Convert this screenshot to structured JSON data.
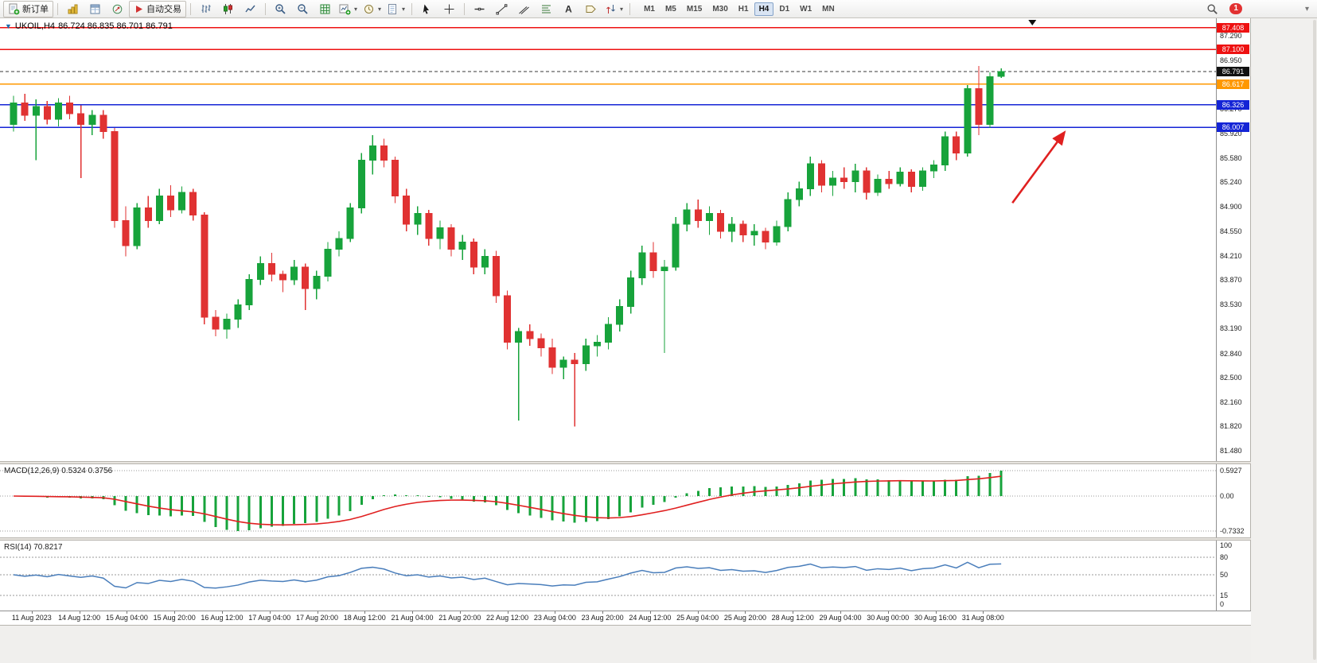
{
  "toolbar": {
    "new_order": "新订单",
    "auto_trading": "自动交易",
    "timeframes": [
      "M1",
      "M5",
      "M15",
      "M30",
      "H1",
      "H4",
      "D1",
      "W1",
      "MN"
    ],
    "active_timeframe": "H4",
    "badge_count": "1"
  },
  "chart": {
    "symbol_title": "UKOIL,H4",
    "ohlc": "86.724 86.835 86.701 86.791"
  },
  "panels": {
    "macd": {
      "label": "MACD(12,26,9) 0.5324 0.3756"
    },
    "rsi": {
      "label": "RSI(14) 70.8217"
    }
  },
  "icons": {
    "new-order-icon": "document-plus",
    "market-watch-icon": "gold-bars",
    "data-window-icon": "window-table",
    "navigator-icon": "compass-circle",
    "auto-trading-icon": "red-play",
    "bar-chart-icon": "ohlc-bars",
    "candlestick-chart-icon": "two-candles",
    "line-chart-icon": "polyline",
    "zoom-in-icon": "magnifier-plus",
    "zoom-out-icon": "magnifier-minus",
    "grid-icon": "green-grid",
    "new-chart-icon": "chart-plus",
    "profiles-icon": "clock",
    "templates-icon": "page",
    "cursor-icon": "arrow-pointer",
    "crosshair-icon": "plus-cross",
    "horizontal-line-icon": "dash",
    "trendline-icon": "diagonal",
    "channel-icon": "parallel-lines",
    "fibonacci-icon": "stacked-lines",
    "text-icon": "letter-A",
    "label-icon": "tag",
    "arrows-icon": "up-down-arrows",
    "search-icon": "magnifier",
    "chevron-down-icon": "small-chevron",
    "mt-logo-icon": "blue-triangle"
  },
  "chart_data": [
    {
      "type": "candlestick",
      "symbol": "UKOIL",
      "timeframe": "H4",
      "current_ohlc": {
        "open": 86.724,
        "high": 86.835,
        "low": 86.701,
        "close": 86.791
      },
      "y_range": [
        81.4,
        87.47
      ],
      "shift_frac": 0.828,
      "up_color": "#17a33b",
      "down_color": "#e03232",
      "y_ticks": [
        "87.290",
        "86.950",
        "86.610",
        "86.270",
        "85.920",
        "85.580",
        "85.240",
        "84.900",
        "84.550",
        "84.210",
        "83.870",
        "83.530",
        "83.190",
        "82.840",
        "82.500",
        "82.160",
        "81.820",
        "81.480"
      ],
      "x_labels": [
        "11 Aug 2023",
        "14 Aug 12:00",
        "15 Aug 04:00",
        "15 Aug 20:00",
        "16 Aug 12:00",
        "17 Aug 04:00",
        "17 Aug 20:00",
        "18 Aug 12:00",
        "21 Aug 04:00",
        "21 Aug 20:00",
        "22 Aug 12:00",
        "23 Aug 04:00",
        "23 Aug 20:00",
        "24 Aug 12:00",
        "25 Aug 04:00",
        "25 Aug 20:00",
        "28 Aug 12:00",
        "29 Aug 04:00",
        "30 Aug 00:00",
        "30 Aug 16:00",
        "31 Aug 08:00"
      ],
      "hlines": [
        {
          "price": 87.408,
          "label": "87.408",
          "color": "#ee1111",
          "width": 1.4,
          "style": "solid",
          "badge_bg": "#ee1111"
        },
        {
          "price": 87.1,
          "label": "87.100",
          "color": "#ee1111",
          "width": 1.4,
          "style": "solid",
          "badge_bg": "#ee1111"
        },
        {
          "price": 86.791,
          "label": "86.791",
          "color": "#3a3a3a",
          "width": 1.0,
          "style": "dash",
          "badge_bg": "#111111"
        },
        {
          "price": 86.617,
          "label": "86.617",
          "color": "#ff9800",
          "width": 1.4,
          "style": "solid",
          "badge_bg": "#ff9800"
        },
        {
          "price": 86.326,
          "label": "86.326",
          "color": "#1424d6",
          "width": 1.4,
          "style": "solid",
          "badge_bg": "#1424d6"
        },
        {
          "price": 86.007,
          "label": "86.007",
          "color": "#1424d6",
          "width": 1.4,
          "style": "solid",
          "badge_bg": "#1424d6"
        }
      ],
      "annotations": {
        "arrow": {
          "x1_frac": 0.8326,
          "price1": 84.95,
          "x2_frac": 0.875,
          "price2": 85.93,
          "color": "#e02020",
          "width": 2.6
        },
        "scroll_marker_frac": 0.849
      },
      "candles": [
        [
          86.05,
          86.45,
          85.95,
          86.35
        ],
        [
          86.35,
          86.48,
          86.1,
          86.18
        ],
        [
          86.18,
          86.4,
          85.55,
          86.3
        ],
        [
          86.3,
          86.38,
          86.05,
          86.12
        ],
        [
          86.12,
          86.42,
          86.02,
          86.35
        ],
        [
          86.35,
          86.45,
          86.12,
          86.2
        ],
        [
          86.2,
          86.32,
          85.3,
          86.05
        ],
        [
          86.05,
          86.25,
          85.9,
          86.18
        ],
        [
          86.18,
          86.25,
          85.85,
          85.95
        ],
        [
          85.95,
          86.0,
          84.6,
          84.7
        ],
        [
          84.7,
          84.9,
          84.2,
          84.35
        ],
        [
          84.35,
          84.95,
          84.3,
          84.88
        ],
        [
          84.88,
          85.05,
          84.6,
          84.7
        ],
        [
          84.7,
          85.15,
          84.65,
          85.05
        ],
        [
          85.05,
          85.2,
          84.75,
          84.85
        ],
        [
          84.85,
          85.18,
          84.8,
          85.1
        ],
        [
          85.1,
          85.15,
          84.7,
          84.78
        ],
        [
          84.78,
          84.82,
          83.25,
          83.35
        ],
        [
          83.35,
          83.45,
          83.08,
          83.18
        ],
        [
          83.18,
          83.4,
          83.05,
          83.32
        ],
        [
          83.32,
          83.6,
          83.2,
          83.52
        ],
        [
          83.52,
          83.95,
          83.45,
          83.88
        ],
        [
          83.88,
          84.2,
          83.8,
          84.1
        ],
        [
          84.1,
          84.25,
          83.85,
          83.95
        ],
        [
          83.95,
          84.0,
          83.7,
          83.87
        ],
        [
          83.87,
          84.15,
          83.8,
          84.05
        ],
        [
          84.05,
          84.1,
          83.45,
          83.75
        ],
        [
          83.75,
          84.0,
          83.6,
          83.92
        ],
        [
          83.92,
          84.4,
          83.85,
          84.3
        ],
        [
          84.3,
          84.55,
          84.2,
          84.45
        ],
        [
          84.45,
          84.95,
          84.4,
          84.88
        ],
        [
          84.88,
          85.65,
          84.8,
          85.55
        ],
        [
          85.55,
          85.9,
          85.35,
          85.75
        ],
        [
          85.75,
          85.85,
          85.45,
          85.55
        ],
        [
          85.55,
          85.6,
          84.95,
          85.05
        ],
        [
          85.05,
          85.15,
          84.55,
          84.65
        ],
        [
          84.65,
          84.9,
          84.5,
          84.8
        ],
        [
          84.8,
          84.85,
          84.35,
          84.45
        ],
        [
          84.45,
          84.7,
          84.3,
          84.6
        ],
        [
          84.6,
          84.65,
          84.2,
          84.3
        ],
        [
          84.3,
          84.5,
          84.15,
          84.4
        ],
        [
          84.4,
          84.45,
          83.95,
          84.05
        ],
        [
          84.05,
          84.3,
          83.95,
          84.2
        ],
        [
          84.2,
          84.28,
          83.55,
          83.65
        ],
        [
          83.65,
          83.72,
          82.9,
          83.0
        ],
        [
          83.0,
          83.2,
          81.9,
          83.15
        ],
        [
          83.15,
          83.25,
          82.95,
          83.05
        ],
        [
          83.05,
          83.12,
          82.8,
          82.92
        ],
        [
          82.92,
          83.05,
          82.55,
          82.65
        ],
        [
          82.65,
          82.8,
          82.48,
          82.75
        ],
        [
          82.75,
          82.85,
          81.82,
          82.7
        ],
        [
          82.7,
          83.05,
          82.6,
          82.95
        ],
        [
          82.95,
          83.1,
          82.8,
          83.0
        ],
        [
          83.0,
          83.35,
          82.9,
          83.25
        ],
        [
          83.25,
          83.6,
          83.15,
          83.5
        ],
        [
          83.5,
          84.0,
          83.4,
          83.9
        ],
        [
          83.9,
          84.35,
          83.8,
          84.25
        ],
        [
          84.25,
          84.4,
          83.9,
          84.0
        ],
        [
          84.0,
          84.15,
          82.85,
          84.05
        ],
        [
          84.05,
          84.75,
          84.0,
          84.65
        ],
        [
          84.65,
          84.95,
          84.55,
          84.85
        ],
        [
          84.85,
          85.0,
          84.6,
          84.7
        ],
        [
          84.7,
          84.9,
          84.5,
          84.8
        ],
        [
          84.8,
          84.85,
          84.45,
          84.55
        ],
        [
          84.55,
          84.75,
          84.4,
          84.65
        ],
        [
          84.65,
          84.7,
          84.4,
          84.5
        ],
        [
          84.5,
          84.65,
          84.35,
          84.55
        ],
        [
          84.55,
          84.6,
          84.3,
          84.4
        ],
        [
          84.4,
          84.7,
          84.35,
          84.62
        ],
        [
          84.62,
          85.1,
          84.55,
          85.0
        ],
        [
          85.0,
          85.25,
          84.9,
          85.15
        ],
        [
          85.15,
          85.6,
          85.05,
          85.5
        ],
        [
          85.5,
          85.55,
          85.1,
          85.2
        ],
        [
          85.2,
          85.4,
          85.05,
          85.3
        ],
        [
          85.3,
          85.45,
          85.15,
          85.25
        ],
        [
          85.25,
          85.5,
          85.1,
          85.4
        ],
        [
          85.4,
          85.45,
          85.0,
          85.1
        ],
        [
          85.1,
          85.35,
          85.05,
          85.28
        ],
        [
          85.28,
          85.4,
          85.15,
          85.22
        ],
        [
          85.22,
          85.45,
          85.18,
          85.38
        ],
        [
          85.38,
          85.42,
          85.1,
          85.18
        ],
        [
          85.18,
          85.45,
          85.12,
          85.4
        ],
        [
          85.4,
          85.55,
          85.3,
          85.48
        ],
        [
          85.48,
          85.95,
          85.4,
          85.88
        ],
        [
          85.88,
          85.95,
          85.55,
          85.65
        ],
        [
          85.65,
          86.6,
          85.6,
          86.55
        ],
        [
          86.55,
          86.87,
          85.9,
          86.05
        ],
        [
          86.05,
          86.78,
          86.0,
          86.72
        ],
        [
          86.724,
          86.835,
          86.701,
          86.791
        ]
      ]
    },
    {
      "type": "bar+line",
      "name": "MACD",
      "label": "MACD(12,26,9) 0.5324 0.3756",
      "params": {
        "fast": 12,
        "slow": 26,
        "signal": 9
      },
      "display_values": [
        0.5324,
        0.3756
      ],
      "derived_from": "candle closes of chart_data[0]",
      "y_ticks": [
        "0.5927",
        "0.00",
        "-0.7332"
      ],
      "histogram_color": "#17a33b",
      "signal_color": "#e02020"
    },
    {
      "type": "line",
      "name": "RSI",
      "label": "RSI(14) 70.8217",
      "period": 14,
      "current_value": 70.8217,
      "derived_from": "candle closes of chart_data[0]",
      "levels": [
        80,
        50,
        15
      ],
      "y_ticks": [
        "100",
        "80",
        "50",
        "15",
        "0"
      ],
      "line_color": "#4a7ebb"
    }
  ]
}
